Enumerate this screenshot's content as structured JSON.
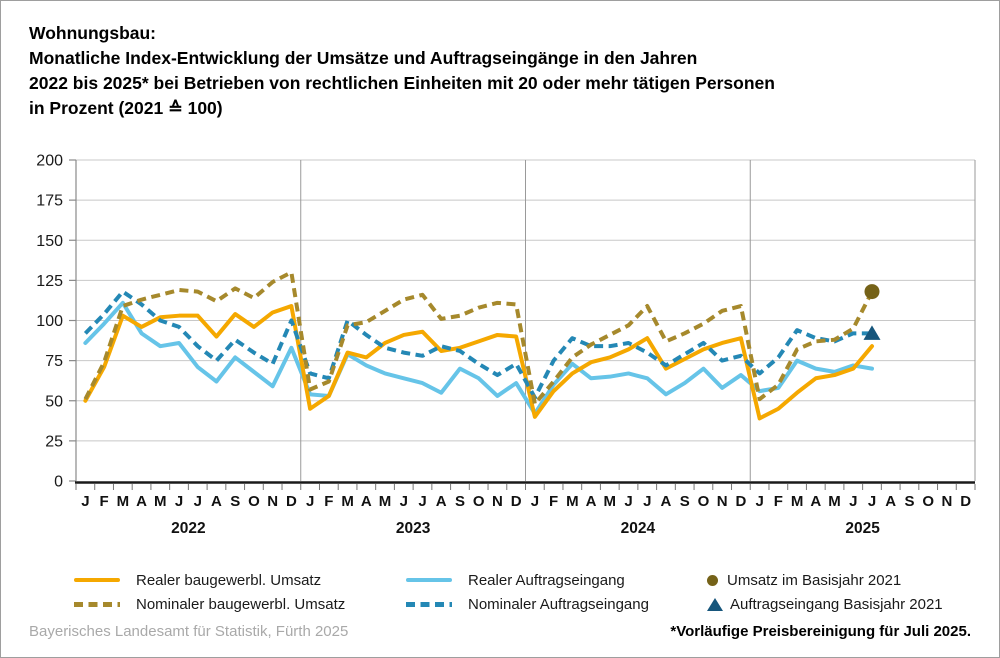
{
  "title": {
    "line1": "Wohnungsbau:",
    "line2": "Monatliche Index-Entwicklung der Umsätze und Auftragseingänge in den Jahren",
    "line3": "2022 bis 2025* bei Betrieben von rechtlichen Einheiten mit 20 oder mehr tätigen Personen",
    "line4": "in Prozent (2021 ≙ 100)"
  },
  "legend": {
    "items": [
      {
        "label": "Realer baugewerbl. Umsatz",
        "swatch": "line",
        "color": "#F5A800"
      },
      {
        "label": "Nominaler baugewerbl. Umsatz",
        "swatch": "dash",
        "color": "#A6892C"
      },
      {
        "label": "Realer Auftragseingang",
        "swatch": "line",
        "color": "#66C4E8"
      },
      {
        "label": "Nominaler Auftragseingang",
        "swatch": "dash",
        "color": "#2488B5"
      },
      {
        "label": "Umsatz im Basisjahr 2021",
        "swatch": "circle",
        "color": "#756218"
      },
      {
        "label": "Auftragseingang Basisjahr 2021",
        "swatch": "triangle",
        "color": "#17567C"
      }
    ]
  },
  "footer": {
    "source": "Bayerisches Landesamt für Statistik, Fürth 2025",
    "note": "*Vorläufige Preisbereinigung für Juli 2025."
  },
  "chart_data": {
    "type": "line",
    "title": "Wohnungsbau: Monatliche Index-Entwicklung der Umsätze und Auftragseingänge 2022 bis 2025, in Prozent (2021 ≙ 100)",
    "ylim": [
      0,
      200
    ],
    "y_ticks": [
      0,
      25,
      50,
      75,
      100,
      125,
      150,
      175,
      200
    ],
    "grid": true,
    "years": [
      "2022",
      "2023",
      "2024",
      "2025"
    ],
    "month_letters": [
      "J",
      "F",
      "M",
      "A",
      "M",
      "J",
      "J",
      "A",
      "S",
      "O",
      "N",
      "D"
    ],
    "n_months_shown": 48,
    "series": [
      {
        "name": "Realer Auftragseingang",
        "color": "#66C4E8",
        "style": "solid",
        "values": [
          86,
          98,
          111,
          92,
          84,
          86,
          71,
          62,
          77,
          68,
          59,
          83,
          54,
          53,
          79,
          72,
          67,
          64,
          61,
          55,
          70,
          64,
          53,
          61,
          42,
          60,
          73,
          64,
          65,
          67,
          64,
          54,
          61,
          70,
          58,
          66,
          56,
          58,
          75,
          70,
          68,
          72,
          70
        ]
      },
      {
        "name": "Realer baugewerbl. Umsatz",
        "color": "#F5A800",
        "style": "solid",
        "values": [
          50,
          71,
          103,
          96,
          102,
          103,
          103,
          90,
          104,
          96,
          105,
          109,
          45,
          53,
          80,
          77,
          86,
          91,
          93,
          81,
          83,
          87,
          91,
          90,
          40,
          56,
          67,
          74,
          77,
          82,
          89,
          70,
          76,
          82,
          86,
          89,
          39,
          45,
          55,
          64,
          66,
          70,
          84
        ]
      },
      {
        "name": "Nominaler Auftragseingang",
        "color": "#2488B5",
        "style": "dashed",
        "values": [
          92,
          104,
          118,
          110,
          100,
          96,
          84,
          75,
          88,
          80,
          73,
          100,
          67,
          64,
          100,
          91,
          83,
          80,
          78,
          84,
          81,
          73,
          66,
          73,
          52,
          75,
          89,
          84,
          84,
          86,
          80,
          72,
          79,
          86,
          75,
          78,
          67,
          77,
          94,
          89,
          87,
          92,
          92
        ]
      },
      {
        "name": "Nominaler baugewerbl. Umsatz",
        "color": "#A6892C",
        "style": "dashed",
        "values": [
          51,
          74,
          109,
          113,
          116,
          119,
          118,
          112,
          120,
          114,
          124,
          130,
          57,
          62,
          97,
          99,
          106,
          113,
          116,
          101,
          103,
          108,
          111,
          110,
          48,
          62,
          77,
          85,
          91,
          97,
          109,
          87,
          92,
          98,
          106,
          109,
          51,
          60,
          82,
          87,
          88,
          95,
          118
        ]
      }
    ],
    "markers": [
      {
        "name": "Umsatz im Basisjahr 2021",
        "shape": "circle",
        "color": "#756218",
        "month_index": 42,
        "month": "2025-07",
        "value": 118
      },
      {
        "name": "Auftragseingang Basisjahr 2021",
        "shape": "triangle",
        "color": "#17567C",
        "month_index": 42,
        "month": "2025-07",
        "value": 92
      }
    ]
  }
}
